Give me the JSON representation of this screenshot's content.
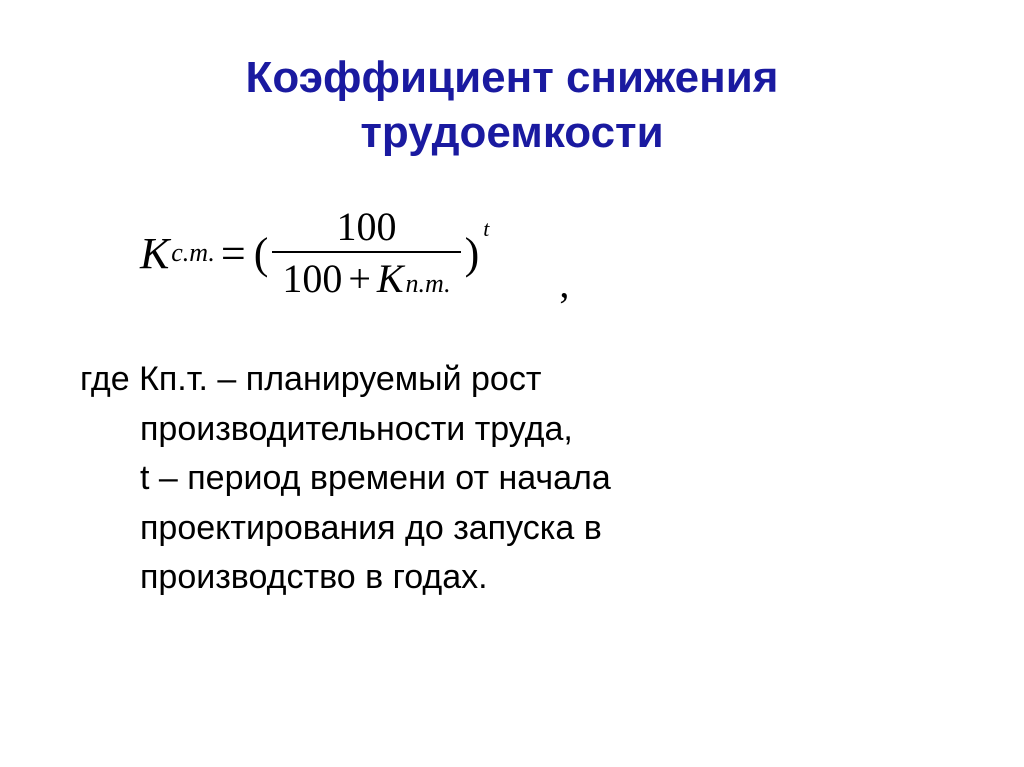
{
  "title_line1": "Коэффициент снижения",
  "title_line2": "трудоемкости",
  "formula": {
    "lhs_var": "К",
    "lhs_sub": "с.т.",
    "numerator": "100",
    "den_left": "100",
    "den_plus": "+",
    "den_var": "К",
    "den_sub": "п.т.",
    "exponent": "t",
    "trailing_comma": ","
  },
  "body": {
    "line1": "где Кп.т. – планируемый рост",
    "line2": "производительности труда,",
    "line3": "t – период времени от начала",
    "line4": "проектирования до запуска в",
    "line5": "производство в годах."
  },
  "colors": {
    "title": "#1a1aa0",
    "text": "#000000",
    "background": "#ffffff"
  }
}
